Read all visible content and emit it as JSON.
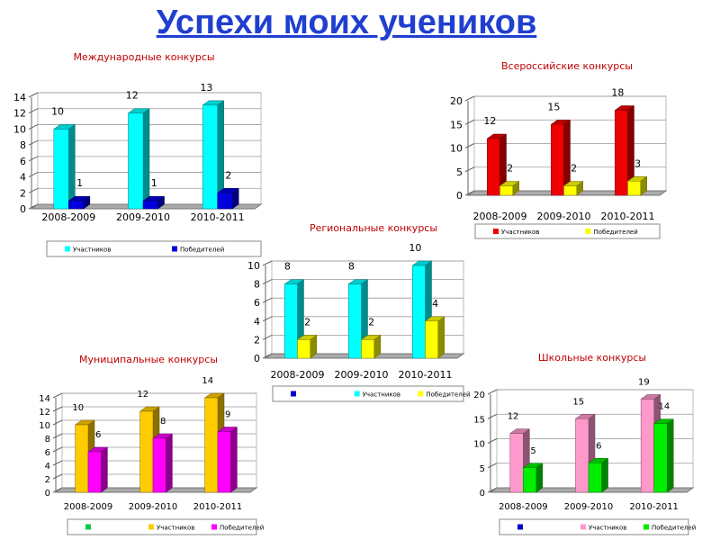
{
  "title": "Успехи моих учеников",
  "chart_data": [
    {
      "type": "bar",
      "title": "Международные конкурсы",
      "categories": [
        "2008-2009",
        "2009-2010",
        "2010-2011"
      ],
      "series": [
        {
          "name": "Участников",
          "values": [
            10,
            12,
            13
          ],
          "color": "#00ffff"
        },
        {
          "name": "Победителей",
          "values": [
            1,
            1,
            2
          ],
          "color": "#0000dd"
        }
      ],
      "ylim": [
        0,
        14
      ],
      "yticks": [
        0,
        2,
        4,
        6,
        8,
        10,
        12,
        14
      ],
      "grid": true,
      "legend": "bottom",
      "legend_extra": []
    },
    {
      "type": "bar",
      "title": "Всероссийские конкурсы",
      "categories": [
        "2008-2009",
        "2009-2010",
        "2010-2011"
      ],
      "series": [
        {
          "name": "Участников",
          "values": [
            12,
            15,
            18
          ],
          "color": "#ee0000"
        },
        {
          "name": "Победителей",
          "values": [
            2,
            2,
            3
          ],
          "color": "#ffff00"
        }
      ],
      "ylim": [
        0,
        20
      ],
      "yticks": [
        0,
        5,
        10,
        15,
        20
      ],
      "grid": true,
      "legend": "bottom",
      "legend_extra": []
    },
    {
      "type": "bar",
      "title": "Региональные конкурсы",
      "categories": [
        "2008-2009",
        "2009-2010",
        "2010-2011"
      ],
      "series": [
        {
          "name": "Участников",
          "values": [
            8,
            8,
            10
          ],
          "color": "#00ffff"
        },
        {
          "name": "Победителей",
          "values": [
            2,
            2,
            4
          ],
          "color": "#ffff00"
        }
      ],
      "ylim": [
        0,
        10
      ],
      "yticks": [
        0,
        2,
        4,
        6,
        8,
        10
      ],
      "grid": true,
      "legend": "bottom",
      "legend_extra": [
        {
          "name": "",
          "color": "#0000cc"
        }
      ]
    },
    {
      "type": "bar",
      "title": "Муниципальные конкурсы",
      "categories": [
        "2008-2009",
        "2009-2010",
        "2010-2011"
      ],
      "series": [
        {
          "name": "Участников",
          "values": [
            10,
            12,
            14
          ],
          "color": "#ffcc00"
        },
        {
          "name": "Победителей",
          "values": [
            6,
            8,
            9
          ],
          "color": "#ff00ff"
        }
      ],
      "ylim": [
        0,
        14
      ],
      "yticks": [
        0,
        2,
        4,
        6,
        8,
        10,
        12,
        14
      ],
      "grid": true,
      "legend": "bottom",
      "legend_extra": [
        {
          "name": "",
          "color": "#00cc44"
        }
      ]
    },
    {
      "type": "bar",
      "title": "Школьные конкурсы",
      "categories": [
        "2008-2009",
        "2009-2010",
        "2010-2011"
      ],
      "series": [
        {
          "name": "Участников",
          "values": [
            12,
            15,
            19
          ],
          "color": "#ff99cc"
        },
        {
          "name": "Победителей",
          "values": [
            5,
            6,
            14
          ],
          "color": "#00ee00"
        }
      ],
      "ylim": [
        0,
        20
      ],
      "yticks": [
        0,
        5,
        10,
        15,
        20
      ],
      "grid": true,
      "legend": "bottom",
      "legend_extra": [
        {
          "name": "",
          "color": "#0000cc"
        }
      ]
    }
  ]
}
